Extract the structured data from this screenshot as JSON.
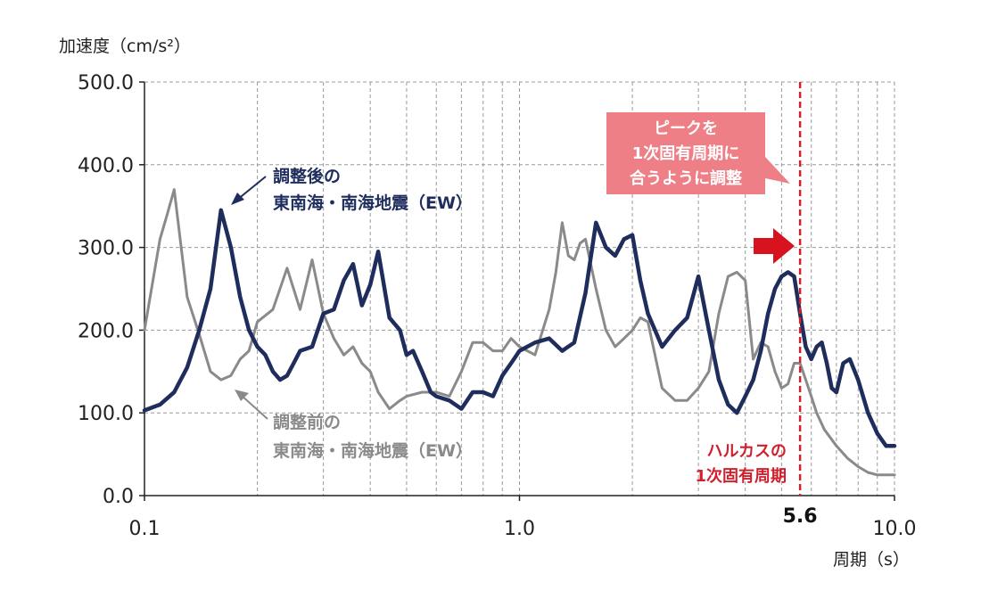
{
  "chart_data": {
    "type": "line",
    "ylabel": "加速度（cm/s²）",
    "xlabel": "周期（s）",
    "xscale": "log",
    "xlim": [
      0.1,
      10.0
    ],
    "ylim": [
      0,
      500
    ],
    "grid": true,
    "y_ticks": [
      "0.0",
      "100.0",
      "200.0",
      "300.0",
      "400.0",
      "500.0"
    ],
    "x_tick_labels": [
      {
        "value": 0.1,
        "label": "0.1"
      },
      {
        "value": 1.0,
        "label": "1.0"
      },
      {
        "value": 10.0,
        "label": "10.0"
      }
    ],
    "series": [
      {
        "name": "調整前の東南海・南海地震（EW）",
        "color": "#8a8a8a",
        "x": [
          0.1,
          0.11,
          0.115,
          0.12,
          0.13,
          0.14,
          0.15,
          0.16,
          0.17,
          0.18,
          0.19,
          0.2,
          0.22,
          0.24,
          0.26,
          0.28,
          0.3,
          0.32,
          0.34,
          0.36,
          0.38,
          0.4,
          0.42,
          0.45,
          0.48,
          0.5,
          0.55,
          0.6,
          0.65,
          0.7,
          0.75,
          0.8,
          0.85,
          0.9,
          0.95,
          1.0,
          1.1,
          1.2,
          1.25,
          1.3,
          1.35,
          1.4,
          1.45,
          1.5,
          1.6,
          1.7,
          1.8,
          1.9,
          2.0,
          2.1,
          2.2,
          2.4,
          2.6,
          2.8,
          3.0,
          3.2,
          3.4,
          3.6,
          3.8,
          4.0,
          4.2,
          4.4,
          4.6,
          4.8,
          5.0,
          5.2,
          5.4,
          5.6,
          5.8,
          6.0,
          6.2,
          6.5,
          7.0,
          7.5,
          8.0,
          8.5,
          9.0,
          9.5,
          10.0
        ],
        "values": [
          200,
          310,
          340,
          370,
          240,
          195,
          150,
          140,
          145,
          165,
          175,
          210,
          225,
          275,
          225,
          285,
          220,
          190,
          170,
          180,
          160,
          150,
          125,
          105,
          115,
          120,
          125,
          125,
          120,
          150,
          185,
          185,
          175,
          175,
          190,
          180,
          170,
          225,
          270,
          330,
          290,
          285,
          305,
          310,
          250,
          200,
          180,
          190,
          200,
          215,
          210,
          130,
          115,
          115,
          130,
          150,
          220,
          265,
          270,
          260,
          165,
          185,
          180,
          150,
          130,
          135,
          160,
          160,
          140,
          120,
          100,
          80,
          60,
          45,
          35,
          28,
          25,
          25,
          25
        ]
      },
      {
        "name": "調整後の東南海・南海地震（EW）",
        "color": "#1f2d5c",
        "x": [
          0.1,
          0.11,
          0.12,
          0.13,
          0.14,
          0.15,
          0.16,
          0.17,
          0.18,
          0.19,
          0.2,
          0.21,
          0.22,
          0.23,
          0.24,
          0.25,
          0.26,
          0.28,
          0.3,
          0.32,
          0.34,
          0.36,
          0.38,
          0.4,
          0.42,
          0.45,
          0.48,
          0.5,
          0.52,
          0.55,
          0.58,
          0.6,
          0.65,
          0.7,
          0.75,
          0.8,
          0.85,
          0.9,
          0.95,
          1.0,
          1.1,
          1.2,
          1.3,
          1.4,
          1.5,
          1.6,
          1.7,
          1.8,
          1.9,
          2.0,
          2.1,
          2.2,
          2.4,
          2.6,
          2.8,
          3.0,
          3.2,
          3.4,
          3.6,
          3.8,
          4.0,
          4.2,
          4.4,
          4.6,
          4.8,
          5.0,
          5.2,
          5.4,
          5.6,
          5.8,
          6.0,
          6.2,
          6.4,
          6.6,
          6.8,
          7.0,
          7.3,
          7.6,
          8.0,
          8.5,
          9.0,
          9.5,
          10.0
        ],
        "values": [
          103,
          110,
          125,
          155,
          200,
          250,
          345,
          300,
          240,
          200,
          180,
          170,
          150,
          140,
          145,
          160,
          175,
          180,
          220,
          225,
          260,
          280,
          230,
          255,
          295,
          215,
          200,
          170,
          175,
          150,
          125,
          120,
          115,
          105,
          125,
          125,
          120,
          145,
          160,
          175,
          185,
          190,
          175,
          185,
          245,
          330,
          300,
          290,
          310,
          315,
          260,
          220,
          180,
          200,
          215,
          265,
          200,
          140,
          110,
          100,
          120,
          140,
          175,
          220,
          250,
          265,
          270,
          265,
          220,
          180,
          165,
          180,
          185,
          160,
          130,
          125,
          160,
          165,
          140,
          100,
          75,
          60,
          60
        ]
      }
    ],
    "annotations": {
      "after_label": [
        "調整後の",
        "東南海・南海地震（EW）"
      ],
      "before_label": [
        "調整前の",
        "東南海・南海地震（EW）"
      ],
      "callout": [
        "ピークを",
        "1次固有周期に",
        "合うように調整"
      ],
      "harukas": [
        "ハルカスの",
        "1次固有周期"
      ],
      "marker_value": 5.6,
      "marker_label": "5.6"
    }
  }
}
